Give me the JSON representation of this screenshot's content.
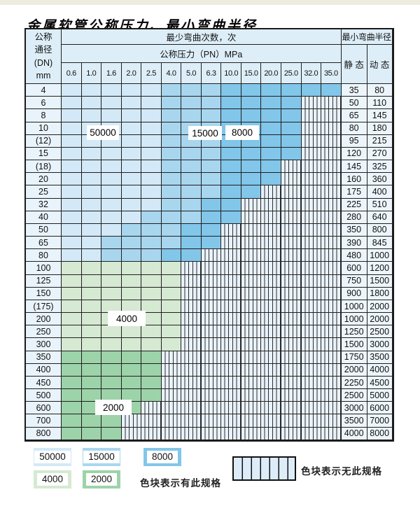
{
  "page": {
    "title": "金属软管公称压力、最小弯曲半径"
  },
  "colors": {
    "blue_light": "#d3e9f7",
    "blue_medium": "#a9d6ef",
    "blue_dark": "#82c6ea",
    "green_light": "#d6e9d2",
    "green_dark": "#9dd3a9",
    "hatch_bg": "#e9f2fa",
    "header_bg": "#deeef8",
    "label_bg": "#e9f3fb",
    "grid_line": "#1f1f1f",
    "top_strip": "#edecdf"
  },
  "table_header": {
    "corner_lines": [
      "公称",
      "通径",
      "(DN)",
      "mm"
    ],
    "bend_cycles_header": "最少弯曲次数，次",
    "pressure_header": "公称压力（PN）MPa",
    "radius_header": "最小弯曲半径",
    "static_label": "静 态",
    "dynamic_label": "动 态"
  },
  "chart_data": {
    "type": "table",
    "title": "金属软管公称压力、最小弯曲半径",
    "column_group_header": "最少弯曲次数，次",
    "pressure_header": "公称压力（PN）MPa",
    "pressure_columns_MPa": [
      "0.6",
      "1.0",
      "1.6",
      "2.0",
      "2.5",
      "4.0",
      "5.0",
      "6.3",
      "10.0",
      "15.0",
      "20.0",
      "25.0",
      "32.0",
      "35.0"
    ],
    "zone_labels": [
      "50000",
      "15000",
      "8000",
      "4000",
      "2000"
    ],
    "radius_columns": [
      "静 态",
      "动 态"
    ],
    "rows": [
      {
        "dn": "4",
        "static": "35",
        "dynamic": "80",
        "colored_through": 13,
        "medium_from": 5,
        "dark_from": 8,
        "palette": "blue"
      },
      {
        "dn": "6",
        "static": "50",
        "dynamic": "110",
        "colored_through": 11,
        "medium_from": 5,
        "dark_from": 8,
        "palette": "blue"
      },
      {
        "dn": "8",
        "static": "65",
        "dynamic": "145",
        "colored_through": 11,
        "medium_from": 5,
        "dark_from": 8,
        "palette": "blue"
      },
      {
        "dn": "10",
        "static": "80",
        "dynamic": "180",
        "colored_through": 11,
        "medium_from": 5,
        "dark_from": 8,
        "palette": "blue"
      },
      {
        "dn": "(12)",
        "static": "95",
        "dynamic": "215",
        "colored_through": 11,
        "medium_from": 5,
        "dark_from": 8,
        "palette": "blue"
      },
      {
        "dn": "15",
        "static": "120",
        "dynamic": "270",
        "colored_through": 11,
        "medium_from": 5,
        "dark_from": 8,
        "palette": "blue"
      },
      {
        "dn": "(18)",
        "static": "145",
        "dynamic": "325",
        "colored_through": 10,
        "medium_from": 5,
        "dark_from": 8,
        "palette": "blue"
      },
      {
        "dn": "20",
        "static": "160",
        "dynamic": "360",
        "colored_through": 10,
        "medium_from": 5,
        "dark_from": 8,
        "palette": "blue"
      },
      {
        "dn": "25",
        "static": "175",
        "dynamic": "400",
        "colored_through": 9,
        "medium_from": 5,
        "dark_from": 8,
        "palette": "blue"
      },
      {
        "dn": "32",
        "static": "225",
        "dynamic": "510",
        "colored_through": 8,
        "medium_from": 5,
        "dark_from": 7,
        "palette": "blue"
      },
      {
        "dn": "40",
        "static": "280",
        "dynamic": "640",
        "colored_through": 8,
        "medium_from": 4,
        "dark_from": 7,
        "palette": "blue"
      },
      {
        "dn": "50",
        "static": "350",
        "dynamic": "800",
        "colored_through": 7,
        "medium_from": 3,
        "dark_from": 6,
        "palette": "blue"
      },
      {
        "dn": "65",
        "static": "390",
        "dynamic": "845",
        "colored_through": 7,
        "medium_from": 2,
        "dark_from": 6,
        "palette": "blue"
      },
      {
        "dn": "80",
        "static": "480",
        "dynamic": "1000",
        "colored_through": 6,
        "medium_from": 2,
        "dark_from": 5,
        "palette": "blue"
      },
      {
        "dn": "100",
        "static": "600",
        "dynamic": "1200",
        "colored_through": 5,
        "palette": "green_light"
      },
      {
        "dn": "125",
        "static": "750",
        "dynamic": "1500",
        "colored_through": 5,
        "palette": "green_light"
      },
      {
        "dn": "150",
        "static": "900",
        "dynamic": "1800",
        "colored_through": 5,
        "palette": "green_light"
      },
      {
        "dn": "(175)",
        "static": "1000",
        "dynamic": "2000",
        "colored_through": 5,
        "palette": "green_light"
      },
      {
        "dn": "200",
        "static": "1000",
        "dynamic": "2000",
        "colored_through": 5,
        "palette": "green_light"
      },
      {
        "dn": "250",
        "static": "1250",
        "dynamic": "2500",
        "colored_through": 5,
        "palette": "green_light"
      },
      {
        "dn": "300",
        "static": "1500",
        "dynamic": "3000",
        "colored_through": 5,
        "palette": "green_light"
      },
      {
        "dn": "350",
        "static": "1750",
        "dynamic": "3500",
        "colored_through": 4,
        "palette": "green_dark"
      },
      {
        "dn": "400",
        "static": "2000",
        "dynamic": "4000",
        "colored_through": 4,
        "palette": "green_dark"
      },
      {
        "dn": "450",
        "static": "2250",
        "dynamic": "4500",
        "colored_through": 4,
        "palette": "green_dark"
      },
      {
        "dn": "500",
        "static": "2500",
        "dynamic": "5000",
        "colored_through": 4,
        "palette": "green_dark"
      },
      {
        "dn": "600",
        "static": "3000",
        "dynamic": "6000",
        "colored_through": 3,
        "palette": "green_dark"
      },
      {
        "dn": "700",
        "static": "3500",
        "dynamic": "7000",
        "colored_through": 2,
        "palette": "green_dark"
      },
      {
        "dn": "800",
        "static": "4000",
        "dynamic": "8000",
        "colored_through": 2,
        "palette": "green_dark"
      }
    ]
  },
  "legend": {
    "exists_swatches": [
      {
        "label": "50000",
        "color_key": "blue_light"
      },
      {
        "label": "15000",
        "color_key": "blue_medium"
      },
      {
        "label": "8000",
        "color_key": "blue_dark"
      },
      {
        "label": "4000",
        "color_key": "green_light"
      },
      {
        "label": "2000",
        "color_key": "green_dark"
      }
    ],
    "exists_text": "色块表示有此规格",
    "none_text": "色块表示无此规格"
  }
}
